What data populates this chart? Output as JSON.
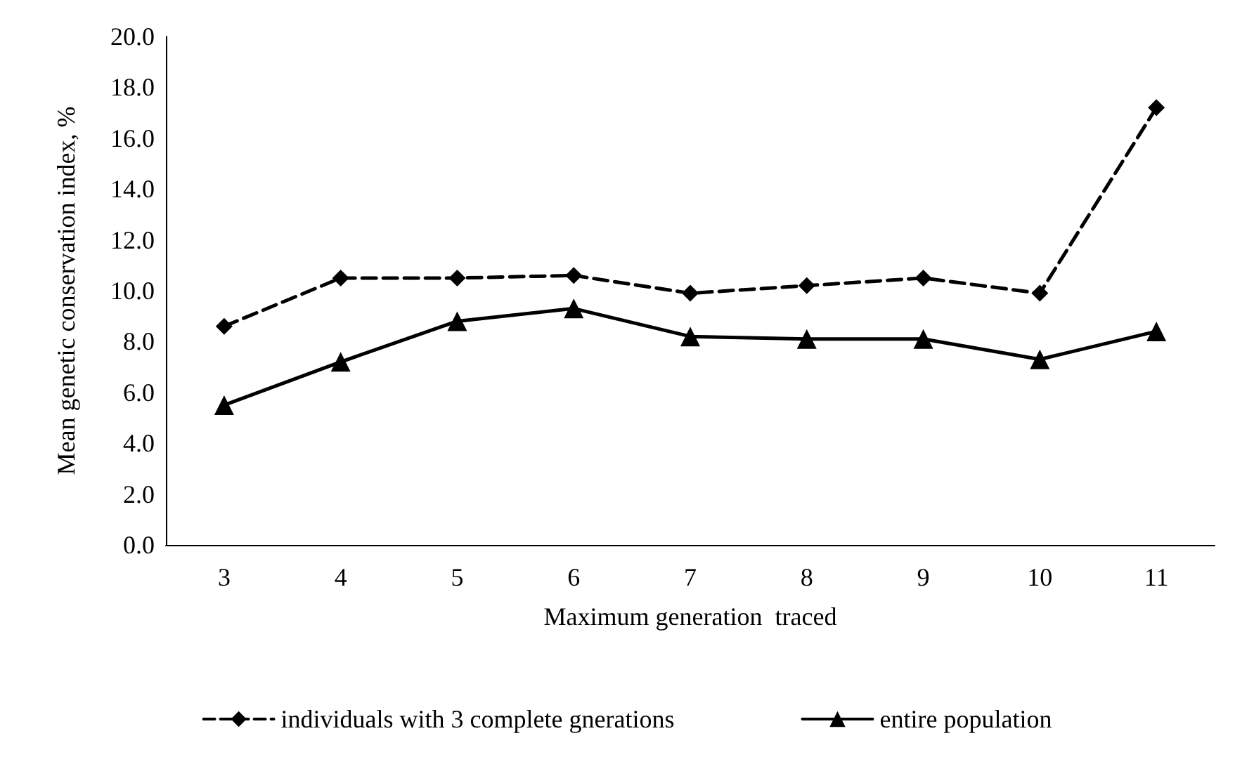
{
  "chart_data": {
    "type": "line",
    "xlabel": "Maximum generation  traced",
    "ylabel": "Mean genetic conservation index, %",
    "categories": [
      "3",
      "4",
      "5",
      "6",
      "7",
      "8",
      "9",
      "10",
      "11"
    ],
    "series": [
      {
        "name": "individuals with 3 complete gnerations",
        "color": "#000000",
        "marker": "diamond",
        "line_style": "dashed",
        "values": [
          8.6,
          10.5,
          10.5,
          10.6,
          9.9,
          10.2,
          10.5,
          9.9,
          17.2
        ]
      },
      {
        "name": "entire population",
        "color": "#000000",
        "marker": "triangle",
        "line_style": "solid",
        "values": [
          5.5,
          7.2,
          8.8,
          9.3,
          8.2,
          8.1,
          8.1,
          7.3,
          8.4
        ]
      }
    ],
    "ylim": [
      0,
      20
    ],
    "yticks": [
      {
        "value": 0,
        "label": "0.0"
      },
      {
        "value": 2,
        "label": "2.0"
      },
      {
        "value": 4,
        "label": "4.0"
      },
      {
        "value": 6,
        "label": "6.0"
      },
      {
        "value": 8,
        "label": "8.0"
      },
      {
        "value": 10,
        "label": "10.0"
      },
      {
        "value": 12,
        "label": "12.0"
      },
      {
        "value": 14,
        "label": "14.0"
      },
      {
        "value": 16,
        "label": "16.0"
      },
      {
        "value": 18,
        "label": "18.0"
      },
      {
        "value": 20,
        "label": "20.0"
      }
    ],
    "grid": false,
    "legend": "bottom"
  }
}
